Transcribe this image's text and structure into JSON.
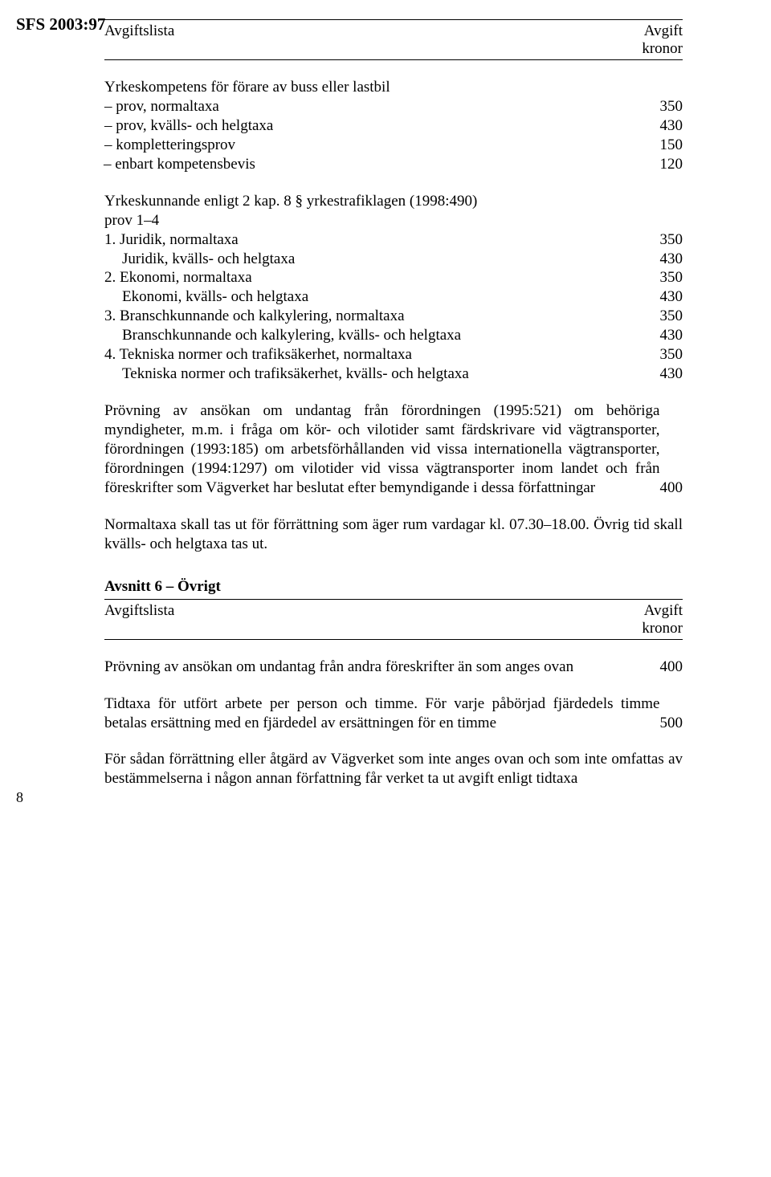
{
  "document": {
    "sfs_ref": "SFS 2003:97",
    "page_number": "8"
  },
  "header1": {
    "left": "Avgiftslista",
    "right_top": "Avgift",
    "right_bottom": "kronor"
  },
  "sectionA": {
    "title": "Yrkeskompetens för förare av buss eller lastbil",
    "rows": [
      {
        "label": "– prov, normaltaxa",
        "value": "350"
      },
      {
        "label": "– prov, kvälls- och helgtaxa",
        "value": "430"
      },
      {
        "label": "– kompletteringsprov",
        "value": "150"
      },
      {
        "label": "– enbart kompetensbevis",
        "value": "120",
        "tracked": true
      }
    ]
  },
  "sectionB": {
    "intro1": "Yrkeskunnande enligt 2 kap. 8 § yrkestrafiklagen (1998:490)",
    "intro2": "prov 1–4",
    "items": [
      {
        "main": "1. Juridik, normaltaxa",
        "main_val": "350",
        "sub": "Juridik, kvälls- och helgtaxa",
        "sub_val": "430"
      },
      {
        "main": "2. Ekonomi, normaltaxa",
        "main_val": "350",
        "sub": "Ekonomi, kvälls- och helgtaxa",
        "sub_val": "430"
      },
      {
        "main": "3. Branschkunnande och kalkylering, normaltaxa",
        "main_val": "350",
        "sub": "Branschkunnande och kalkylering, kvälls- och helgtaxa",
        "sub_val": "430"
      },
      {
        "main": "4. Tekniska normer och trafiksäkerhet, normaltaxa",
        "main_val": "350",
        "sub": "Tekniska normer och trafiksäkerhet, kvälls- och helgtaxa",
        "sub_val": "430"
      }
    ]
  },
  "paragraphC": {
    "text": "Prövning av ansökan om undantag från förordningen (1995:521) om behöriga myndigheter, m.m. i fråga om kör- och vilotider samt färdskrivare vid vägtransporter, förordningen (1993:185) om arbetsförhållanden vid vissa internationella vägtransporter, förordningen (1994:1297) om vilotider vid vissa vägtransporter inom landet och från föreskrifter som Vägverket har beslutat efter bemyndigande i dessa författningar",
    "value": "400"
  },
  "paragraphD": {
    "text": "Normaltaxa skall tas ut för förrättning som äger rum vardagar kl. 07.30–18.00. Övrig tid skall kvälls- och helgtaxa tas ut."
  },
  "section6": {
    "title": "Avsnitt 6 – Övrigt"
  },
  "header2": {
    "left": "Avgiftslista",
    "right_top": "Avgift",
    "right_bottom": "kronor"
  },
  "paragraphE": {
    "text": "Prövning av ansökan om undantag från andra föreskrifter än som anges ovan",
    "value": "400"
  },
  "paragraphF": {
    "text": "Tidtaxa för utfört arbete per person och timme. För varje påbörjad fjärdedels timme betalas ersättning med en fjärdedel av ersättningen för en timme",
    "value": "500"
  },
  "paragraphG": {
    "text": "För sådan förrättning eller åtgärd av Vägverket som inte anges ovan och som inte omfattas av bestämmelserna i någon annan författning får verket ta ut avgift enligt tidtaxa"
  }
}
